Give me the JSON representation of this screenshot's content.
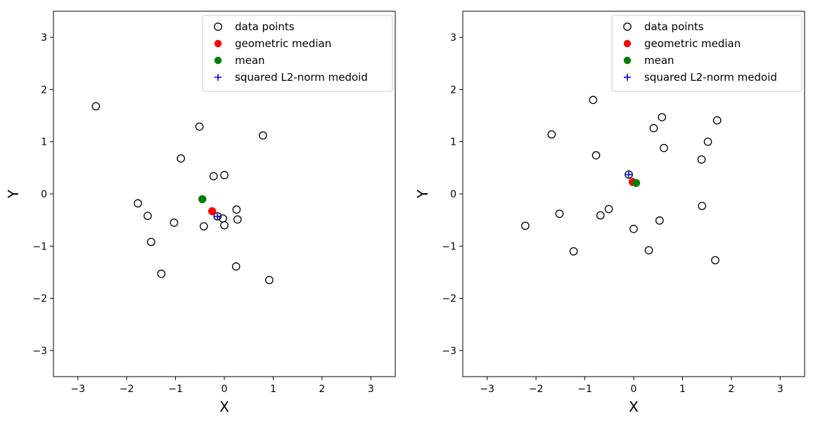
{
  "chart_data": [
    {
      "type": "scatter",
      "xlabel": "X",
      "ylabel": "Y",
      "xlim": [
        -3.5,
        3.5
      ],
      "ylim": [
        -3.5,
        3.5
      ],
      "xticks": [
        -3,
        -2,
        -1,
        0,
        1,
        2,
        3
      ],
      "yticks": [
        -3,
        -2,
        -1,
        0,
        1,
        2,
        3
      ],
      "tick_labels": [
        "−3",
        "−2",
        "−1",
        "0",
        "1",
        "2",
        "3"
      ],
      "grid": false,
      "legend": {
        "location": "upper right",
        "entries": [
          "data points",
          "geometric median",
          "mean",
          "squared L2-norm medoid"
        ]
      },
      "series": [
        {
          "name": "data points",
          "marker": "open-circle",
          "color": "#000000",
          "points": [
            [
              -2.63,
              1.68
            ],
            [
              -0.51,
              1.29
            ],
            [
              0.79,
              1.12
            ],
            [
              0.38,
              2.26
            ],
            [
              -0.89,
              0.68
            ],
            [
              -0.22,
              0.34
            ],
            [
              0.0,
              0.36
            ],
            [
              -1.77,
              -0.18
            ],
            [
              -1.57,
              -0.42
            ],
            [
              -1.03,
              -0.55
            ],
            [
              -1.5,
              -0.92
            ],
            [
              -1.29,
              -1.53
            ],
            [
              -0.42,
              -0.62
            ],
            [
              -0.03,
              -0.47
            ],
            [
              0.0,
              -0.6
            ],
            [
              0.25,
              -0.3
            ],
            [
              0.27,
              -0.49
            ],
            [
              0.24,
              -1.39
            ],
            [
              0.92,
              -1.65
            ],
            [
              -0.14,
              -0.43
            ]
          ]
        },
        {
          "name": "geometric median",
          "marker": "filled-circle",
          "color": "#ff0000",
          "points": [
            [
              -0.25,
              -0.33
            ]
          ]
        },
        {
          "name": "mean",
          "marker": "filled-circle",
          "color": "#008000",
          "points": [
            [
              -0.45,
              -0.1
            ]
          ]
        },
        {
          "name": "squared L2-norm medoid",
          "marker": "plus",
          "color": "#0000ff",
          "points": [
            [
              -0.14,
              -0.43
            ]
          ]
        }
      ]
    },
    {
      "type": "scatter",
      "xlabel": "X",
      "ylabel": "Y",
      "xlim": [
        -3.5,
        3.5
      ],
      "ylim": [
        -3.5,
        3.5
      ],
      "xticks": [
        -3,
        -2,
        -1,
        0,
        1,
        2,
        3
      ],
      "yticks": [
        -3,
        -2,
        -1,
        0,
        1,
        2,
        3
      ],
      "tick_labels": [
        "−3",
        "−2",
        "−1",
        "0",
        "1",
        "2",
        "3"
      ],
      "grid": false,
      "legend": {
        "location": "upper right",
        "entries": [
          "data points",
          "geometric median",
          "mean",
          "squared L2-norm medoid"
        ]
      },
      "series": [
        {
          "name": "data points",
          "marker": "open-circle",
          "color": "#000000",
          "points": [
            [
              -0.83,
              1.8
            ],
            [
              -1.68,
              1.14
            ],
            [
              0.41,
              1.26
            ],
            [
              0.58,
              1.47
            ],
            [
              1.71,
              1.41
            ],
            [
              1.52,
              1.0
            ],
            [
              0.62,
              0.88
            ],
            [
              1.39,
              0.66
            ],
            [
              -0.77,
              0.74
            ],
            [
              -0.1,
              0.37
            ],
            [
              -2.22,
              -0.61
            ],
            [
              -1.52,
              -0.38
            ],
            [
              -0.51,
              -0.29
            ],
            [
              -0.68,
              -0.41
            ],
            [
              0.53,
              -0.51
            ],
            [
              1.4,
              -0.23
            ],
            [
              0.0,
              -0.67
            ],
            [
              -1.23,
              -1.1
            ],
            [
              0.31,
              -1.08
            ],
            [
              1.67,
              -1.27
            ]
          ]
        },
        {
          "name": "geometric median",
          "marker": "filled-circle",
          "color": "#ff0000",
          "points": [
            [
              -0.02,
              0.23
            ]
          ]
        },
        {
          "name": "mean",
          "marker": "filled-circle",
          "color": "#008000",
          "points": [
            [
              0.05,
              0.21
            ]
          ]
        },
        {
          "name": "squared L2-norm medoid",
          "marker": "plus",
          "color": "#0000ff",
          "points": [
            [
              -0.1,
              0.37
            ]
          ]
        }
      ]
    }
  ]
}
